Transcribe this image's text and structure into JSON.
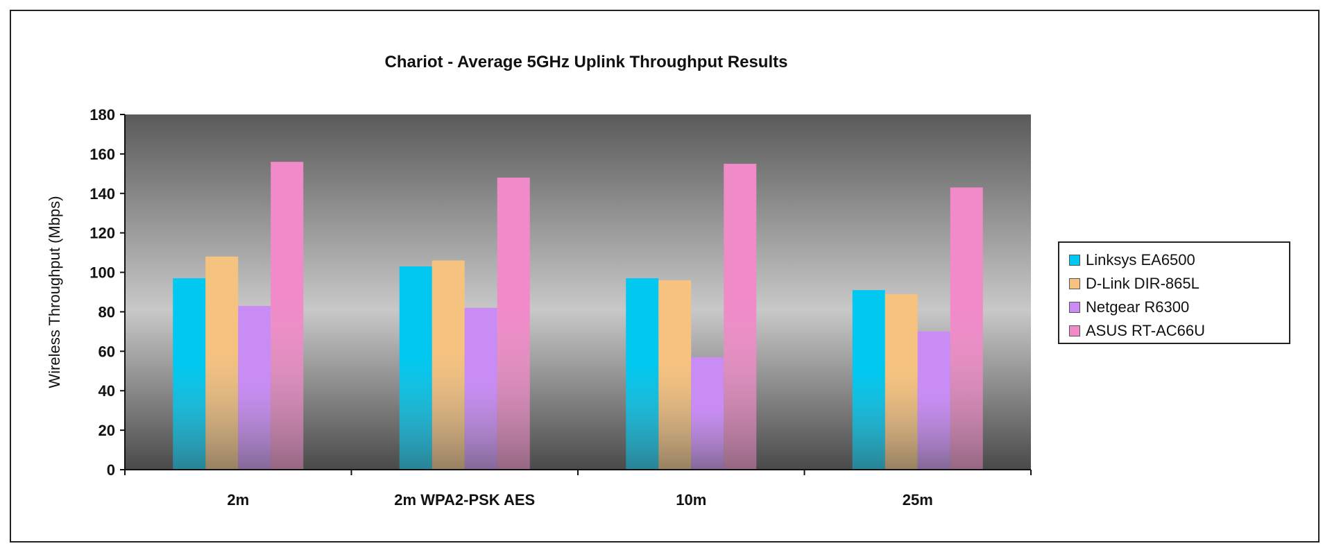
{
  "chart_data": {
    "type": "bar",
    "title": "Chariot - Average 5GHz Uplink Throughput Results",
    "xlabel": "",
    "ylabel": "Wireless Throughput (Mbps)",
    "ylim": [
      0,
      180
    ],
    "yticks": [
      "0",
      "20",
      "40",
      "60",
      "80",
      "100",
      "120",
      "140",
      "160",
      "180"
    ],
    "categories": [
      "2m",
      "2m WPA2-PSK AES",
      "10m",
      "25m"
    ],
    "series": [
      {
        "name": "Linksys EA6500",
        "color": "#00c8f0",
        "values": [
          97,
          103,
          97,
          91
        ]
      },
      {
        "name": "D-Link DIR-865L",
        "color": "#f5c27f",
        "values": [
          108,
          106,
          96,
          89
        ]
      },
      {
        "name": "Netgear R6300",
        "color": "#c98cf5",
        "values": [
          83,
          82,
          57,
          70
        ]
      },
      {
        "name": "ASUS RT-AC66U",
        "color": "#f08ac8",
        "values": [
          156,
          148,
          155,
          143
        ]
      }
    ],
    "grid": false,
    "legend_position": "right"
  }
}
